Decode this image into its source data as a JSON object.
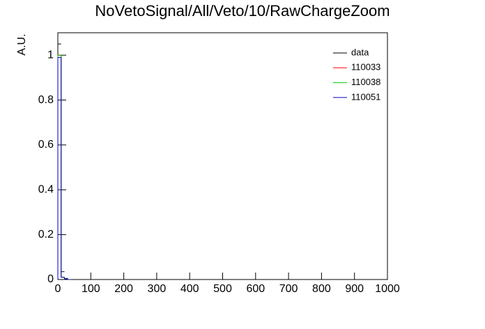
{
  "chart_data": {
    "type": "histogram",
    "title": "NoVetoSignal/All/Veto/10/RawChargeZoom",
    "y_label": "A.U.",
    "bins": [
      0,
      10,
      20,
      30,
      40
    ],
    "series": [
      {
        "name": "data",
        "color": "#000000",
        "values": [
          1.05,
          0.035,
          0.005,
          0
        ]
      },
      {
        "name": "110033",
        "color": "#ff0000",
        "values": [
          1.0,
          0.01,
          0.005,
          0
        ]
      },
      {
        "name": "110038",
        "color": "#00cc00",
        "values": [
          1.0,
          0.01,
          0.004,
          0
        ]
      },
      {
        "name": "110051",
        "color": "#0000cc",
        "values": [
          0.99,
          0.01,
          0.003,
          0
        ]
      }
    ],
    "xlim": [
      0,
      1000
    ],
    "xticks": [
      0,
      100,
      200,
      300,
      400,
      500,
      600,
      700,
      800,
      900,
      1000
    ],
    "ylim": [
      0,
      1.1
    ],
    "yticks": [
      0,
      0.2,
      0.4,
      0.6,
      0.8,
      1
    ],
    "legend": "upper-right"
  }
}
